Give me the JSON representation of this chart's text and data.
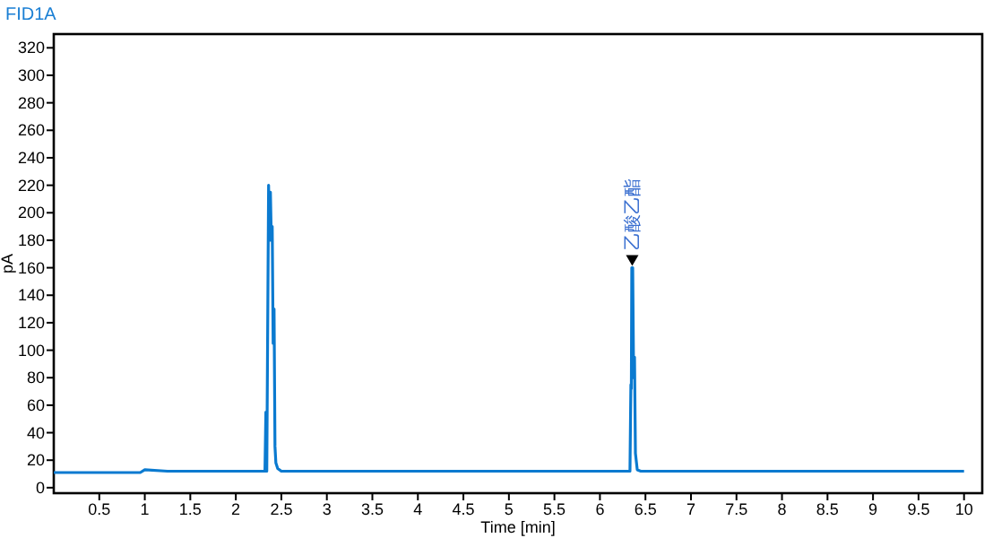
{
  "chart_data": {
    "type": "line",
    "title": "FID1A",
    "xlabel": "Time [min]",
    "ylabel": "pA",
    "x": [
      0,
      0.5,
      0.95,
      1.0,
      1.25,
      1.3,
      2.32,
      2.33,
      2.34,
      2.36,
      2.37,
      2.38,
      2.39,
      2.4,
      2.41,
      2.42,
      2.43,
      2.44,
      2.46,
      2.5,
      6.33,
      6.34,
      6.345,
      6.35,
      6.36,
      6.37,
      6.38,
      6.39,
      6.41,
      6.45,
      10
    ],
    "series": [
      {
        "color": "#0a7ad0",
        "values": [
          11,
          11,
          11,
          13,
          12,
          12,
          12,
          55,
          12,
          220,
          180,
          215,
          180,
          190,
          105,
          130,
          30,
          18,
          14,
          12,
          12,
          75,
          72,
          160,
          160,
          80,
          95,
          25,
          13,
          12,
          12
        ]
      }
    ],
    "xlim": [
      0,
      10.2
    ],
    "ylim": [
      -4,
      330
    ],
    "xticks": [
      0.5,
      1,
      1.5,
      2,
      2.5,
      3,
      3.5,
      4,
      4.5,
      5,
      5.5,
      6,
      6.5,
      7,
      7.5,
      8,
      8.5,
      9,
      9.5,
      10
    ],
    "yticks": [
      0,
      20,
      40,
      60,
      80,
      100,
      120,
      140,
      160,
      180,
      200,
      220,
      240,
      260,
      280,
      300,
      320
    ],
    "grid": false,
    "annotations": [
      {
        "text": "乙酸乙酯",
        "x": 6.355,
        "y": 160
      }
    ]
  }
}
